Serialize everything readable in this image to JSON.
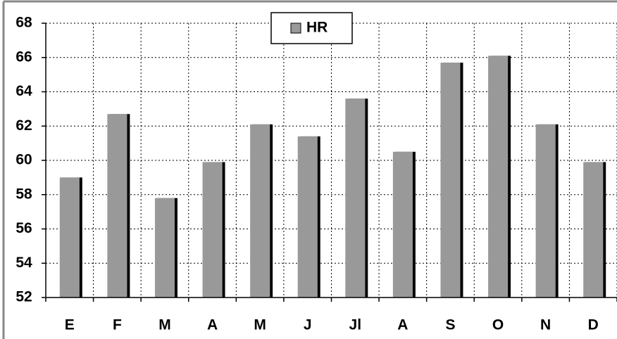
{
  "chart_data": {
    "type": "bar",
    "categories": [
      "E",
      "F",
      "M",
      "A",
      "M",
      "J",
      "Jl",
      "A",
      "S",
      "O",
      "N",
      "D"
    ],
    "series": [
      {
        "name": "HR",
        "color": "#999999",
        "values": [
          59.0,
          62.7,
          57.8,
          59.9,
          62.1,
          61.4,
          63.6,
          60.5,
          65.7,
          66.1,
          62.1,
          59.9
        ]
      }
    ],
    "ylim": [
      52,
      68
    ],
    "yticks": [
      52,
      54,
      56,
      58,
      60,
      62,
      64,
      66,
      68
    ],
    "grid": true,
    "legend": "top"
  }
}
